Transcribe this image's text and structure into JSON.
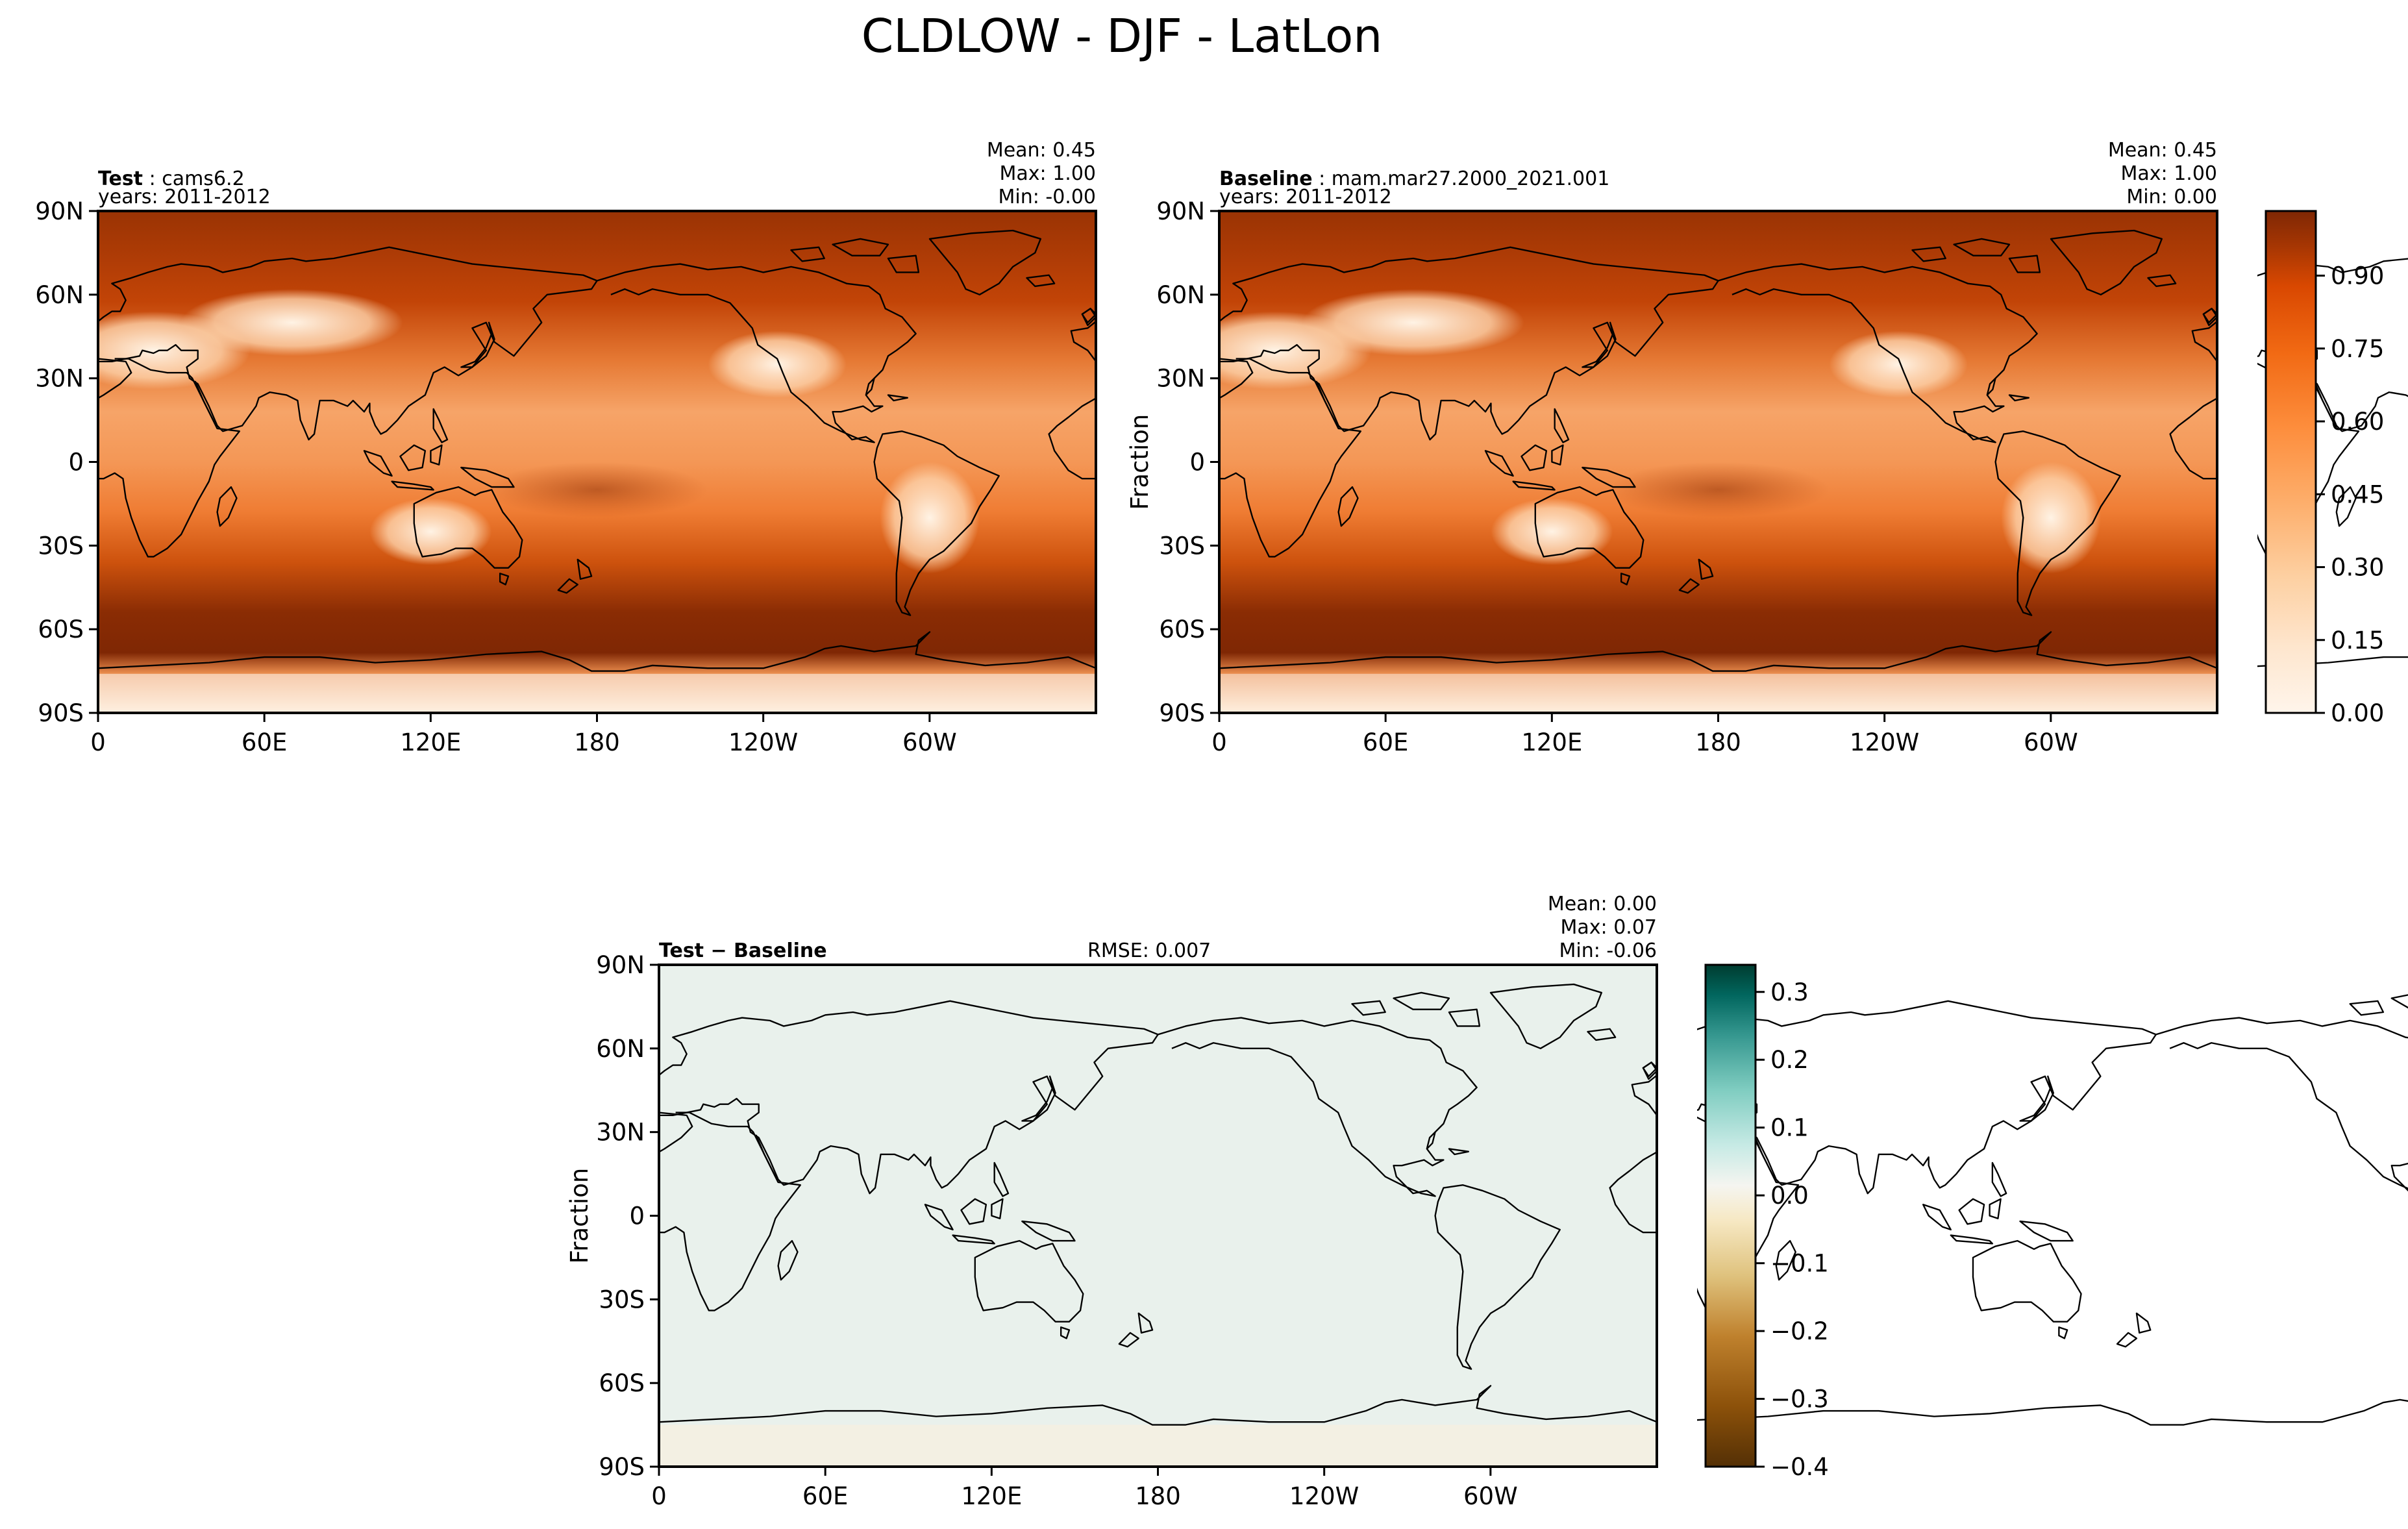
{
  "figure": {
    "title": "CLDLOW - DJF - LatLon"
  },
  "axes": {
    "lon_ticks": [
      "0",
      "60E",
      "120E",
      "180",
      "120W",
      "60W"
    ],
    "lat_ticks": [
      "90N",
      "60N",
      "30N",
      "0",
      "30S",
      "60S",
      "90S"
    ]
  },
  "panels": [
    {
      "id": "test",
      "label_bold": "Test",
      "label_rest": " : cams6.2",
      "years": "years: 2011-2012",
      "stats": [
        "Mean:  0.45",
        "Max:  1.00",
        "Min: -0.00"
      ],
      "ylabel": ""
    },
    {
      "id": "baseline",
      "label_bold": "Baseline",
      "label_rest": " : mam.mar27.2000_2021.001",
      "years": "years: 2011-2012",
      "stats": [
        "Mean:  0.45",
        "Max:  1.00",
        "Min:  0.00"
      ],
      "ylabel": "Fraction"
    },
    {
      "id": "diff",
      "label_bold": "Test − Baseline",
      "label_rest": "",
      "rmse": "RMSE: 0.007",
      "stats": [
        "Mean:  0.00",
        "Max:  0.07",
        "Min: -0.06"
      ],
      "ylabel": "Fraction"
    }
  ],
  "colorbar_main": {
    "ticks": [
      "0.00",
      "0.15",
      "0.30",
      "0.45",
      "0.60",
      "0.75",
      "0.90"
    ],
    "colors": [
      "#fff5eb",
      "#fee6ce",
      "#fdd0a2",
      "#fdae6b",
      "#fd8d3c",
      "#f16913",
      "#d94801",
      "#a63603",
      "#7f2704"
    ]
  },
  "colorbar_diff": {
    "ticks": [
      "0.3",
      "0.2",
      "0.1",
      "0.0",
      "−0.1",
      "−0.2",
      "−0.3",
      "−0.4"
    ],
    "colors": [
      "#543005",
      "#8c510a",
      "#bf812d",
      "#dfc27d",
      "#f6e8c3",
      "#f5f5f0",
      "#c7eae5",
      "#80cdc1",
      "#35978f",
      "#01665e",
      "#003c30"
    ]
  }
}
